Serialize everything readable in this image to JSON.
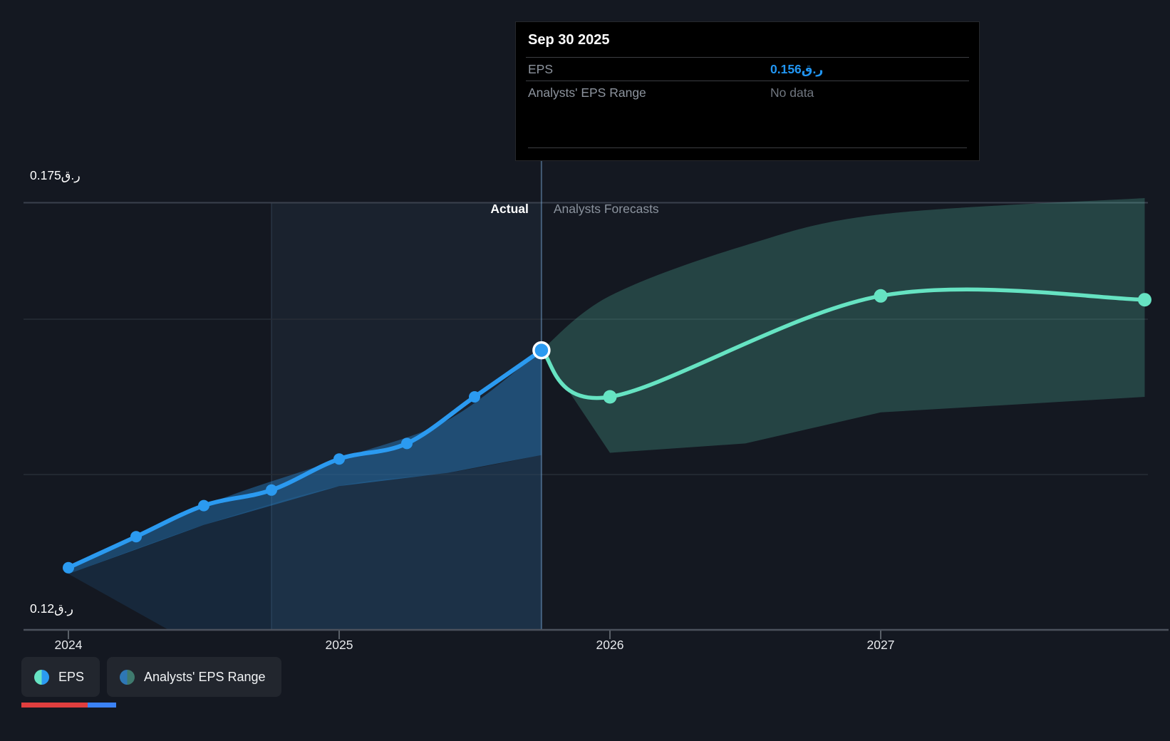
{
  "tooltip": {
    "title": "Sep 30 2025",
    "rows": [
      {
        "label": "EPS",
        "value": "0.156ر.ق",
        "style": "eps"
      },
      {
        "label": "Analysts' EPS Range",
        "value": "No data",
        "style": "nodata"
      }
    ]
  },
  "annotations": {
    "actual_label": "Actual",
    "forecast_label": "Analysts Forecasts"
  },
  "legend": [
    {
      "label": "EPS",
      "dot": "eps-split-dot"
    },
    {
      "label": "Analysts' EPS Range",
      "dot": "range-split-dot"
    }
  ],
  "colors": {
    "background": "#141821",
    "actual_line": "#2b9af0",
    "forecast_line": "#66e3c2",
    "eps_value_text": "#2196f3",
    "grid_strong": "#3a414d",
    "grid_faint": "#272d37",
    "axis_line": "#4b515c",
    "highlight_band": "rgba(100,150,210,0.08)",
    "actual_fill": "rgba(43,154,240,0.36)",
    "actual_fill_dark": "rgba(43,154,240,0.13)",
    "forecast_fill": "rgba(102,227,194,0.22)",
    "divider_line": "rgba(125,172,220,0.45)"
  },
  "chart_data": {
    "type": "line",
    "title": "EPS actual vs analysts forecast",
    "currency_symbol": "ر.ق",
    "x_axis": {
      "ticks": [
        2024,
        2025,
        2026,
        2027
      ],
      "range": [
        2023.83,
        2028.02
      ]
    },
    "y_axis": {
      "range": [
        0.12,
        0.175
      ],
      "gridlines": [
        0.175,
        0.16,
        0.14
      ],
      "labels": [
        {
          "value": 0.175,
          "text": "0.175ر.ق"
        },
        {
          "value": 0.12,
          "text": "0.12ر.ق"
        }
      ]
    },
    "divider_x": 2025.747,
    "highlight_band_x": [
      2024.75,
      2025.747
    ],
    "series": [
      {
        "name": "EPS (actual)",
        "color_key": "actual_line",
        "x": [
          2024.0,
          2024.25,
          2024.5,
          2024.75,
          2025.0,
          2025.25,
          2025.5,
          2025.747
        ],
        "values": [
          0.128,
          0.132,
          0.136,
          0.138,
          0.142,
          0.144,
          0.15,
          0.156
        ]
      },
      {
        "name": "EPS (analysts forecast)",
        "color_key": "forecast_line",
        "x": [
          2025.747,
          2026.0,
          2027.0,
          2027.975
        ],
        "values": [
          0.156,
          0.15,
          0.163,
          0.1625
        ]
      }
    ],
    "bands": [
      {
        "name": "actual-range",
        "x": [
          2024.0,
          2024.5,
          2025.0,
          2025.4,
          2025.747
        ],
        "top": [
          0.128,
          0.136,
          0.142,
          0.147,
          0.156
        ],
        "bottom": [
          0.1272,
          0.1335,
          0.1385,
          0.1402,
          0.1425
        ]
      },
      {
        "name": "forecast-range",
        "x": [
          2025.747,
          2026.0,
          2026.5,
          2027.0,
          2027.975
        ],
        "top": [
          0.156,
          0.163,
          0.1695,
          0.1735,
          0.1756
        ],
        "bottom": [
          0.156,
          0.1428,
          0.144,
          0.148,
          0.15
        ]
      }
    ],
    "highlighted_point": {
      "x": 2025.747,
      "value": 0.156,
      "date": "Sep 30 2025"
    }
  }
}
